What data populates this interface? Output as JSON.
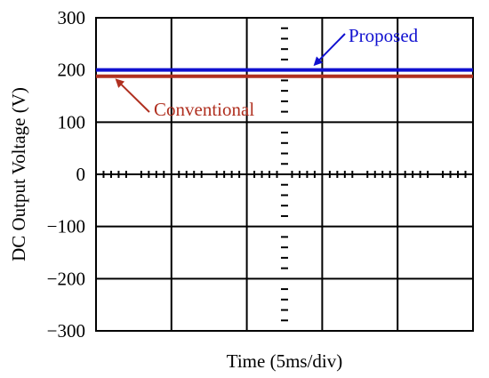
{
  "chart_data": {
    "type": "line",
    "title": "",
    "xlabel": "Time (5ms/div)",
    "ylabel": "DC Output Voltage (V)",
    "x_divisions": 10,
    "ylim": [
      -300,
      300
    ],
    "y_ticks": [
      -300,
      -200,
      -100,
      0,
      100,
      200,
      300
    ],
    "y_tick_labels": [
      "−300",
      "−200",
      "−100",
      "0",
      "100",
      "200",
      "300"
    ],
    "grid": true,
    "series": [
      {
        "name": "Proposed",
        "value": 200,
        "color": "#1010d0"
      },
      {
        "name": "Conventional",
        "value": 188,
        "color": "#b03020"
      }
    ],
    "annotations": [
      {
        "text": "Proposed",
        "color": "#1010d0",
        "points_to": "Proposed"
      },
      {
        "text": "Conventional",
        "color": "#b03020",
        "points_to": "Conventional"
      }
    ]
  }
}
